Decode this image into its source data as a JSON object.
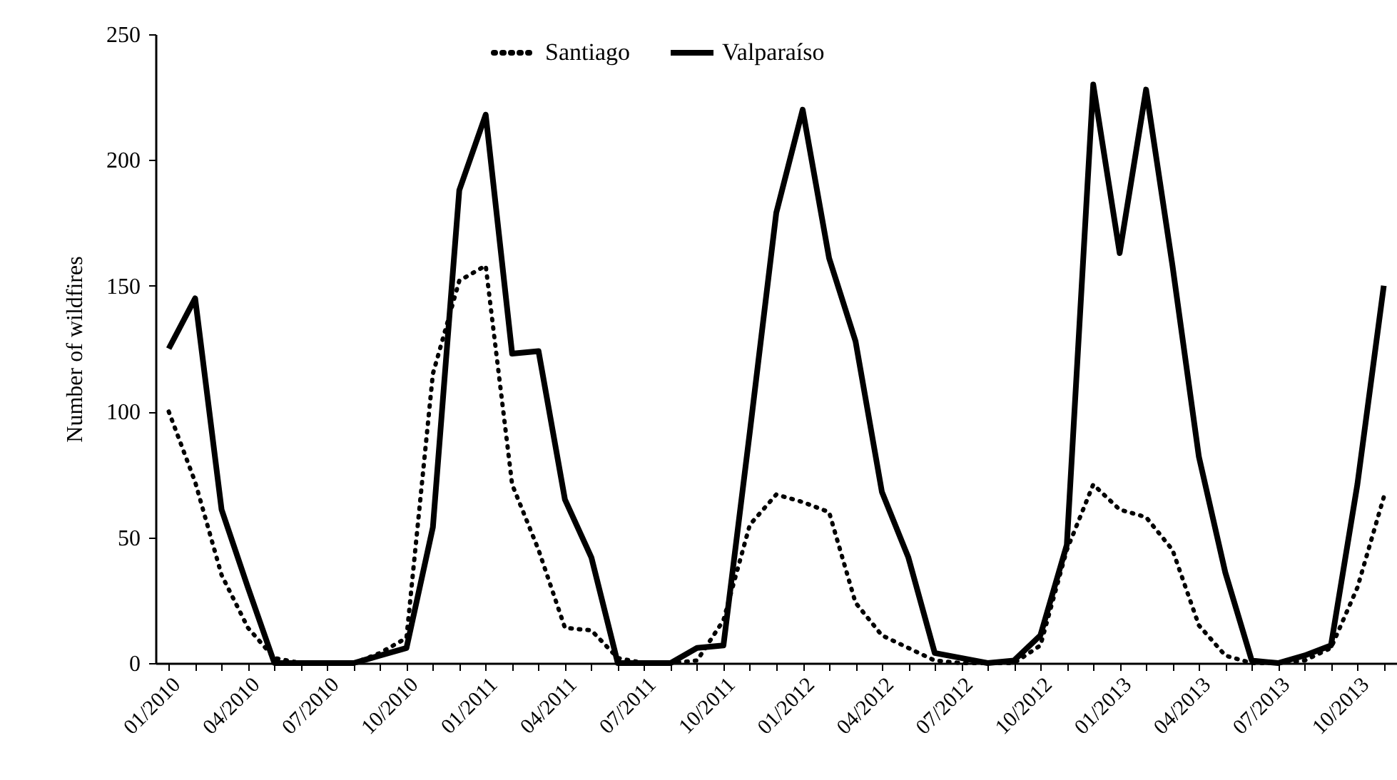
{
  "chart_data": {
    "type": "line",
    "ylabel": "Number of wildfires",
    "categories": [
      "01/2010",
      null,
      null,
      "04/2010",
      null,
      null,
      "07/2010",
      null,
      null,
      "10/2010",
      null,
      null,
      "01/2011",
      null,
      null,
      "04/2011",
      null,
      null,
      "07/2011",
      null,
      null,
      "10/2011",
      null,
      null,
      "01/2012",
      null,
      null,
      "04/2012",
      null,
      null,
      "07/2012",
      null,
      null,
      "10/2012",
      null,
      null,
      "01/2013",
      null,
      null,
      "04/2013",
      null,
      null,
      "07/2013",
      null,
      null,
      "10/2013",
      null
    ],
    "series": [
      {
        "name": "Santiago",
        "color": "#000000",
        "line_style": "dotted",
        "values": [
          100,
          72,
          35,
          14,
          2,
          0,
          0,
          0,
          4,
          10,
          115,
          152,
          158,
          71,
          45,
          14,
          13,
          2,
          0,
          0,
          1,
          17,
          55,
          67,
          64,
          60,
          24,
          11,
          6,
          1,
          0,
          0,
          0,
          7,
          45,
          71,
          61,
          58,
          45,
          15,
          3,
          0,
          0,
          1,
          6,
          30,
          66
        ]
      },
      {
        "name": "Valparaíso",
        "color": "#000000",
        "line_style": "solid",
        "values": [
          125,
          145,
          61,
          30,
          0,
          0,
          0,
          0,
          3,
          6,
          54,
          188,
          218,
          123,
          124,
          65,
          42,
          0,
          0,
          0,
          6,
          7,
          92,
          179,
          220,
          161,
          128,
          68,
          42,
          4,
          2,
          0,
          1,
          11,
          47,
          230,
          163,
          228,
          158,
          82,
          36,
          1,
          0,
          3,
          7,
          71,
          150
        ]
      }
    ],
    "ylim": [
      0,
      250
    ],
    "yticks": [
      0,
      50,
      100,
      150,
      200,
      250
    ],
    "grid": false,
    "legend": "top",
    "marker": "none"
  }
}
